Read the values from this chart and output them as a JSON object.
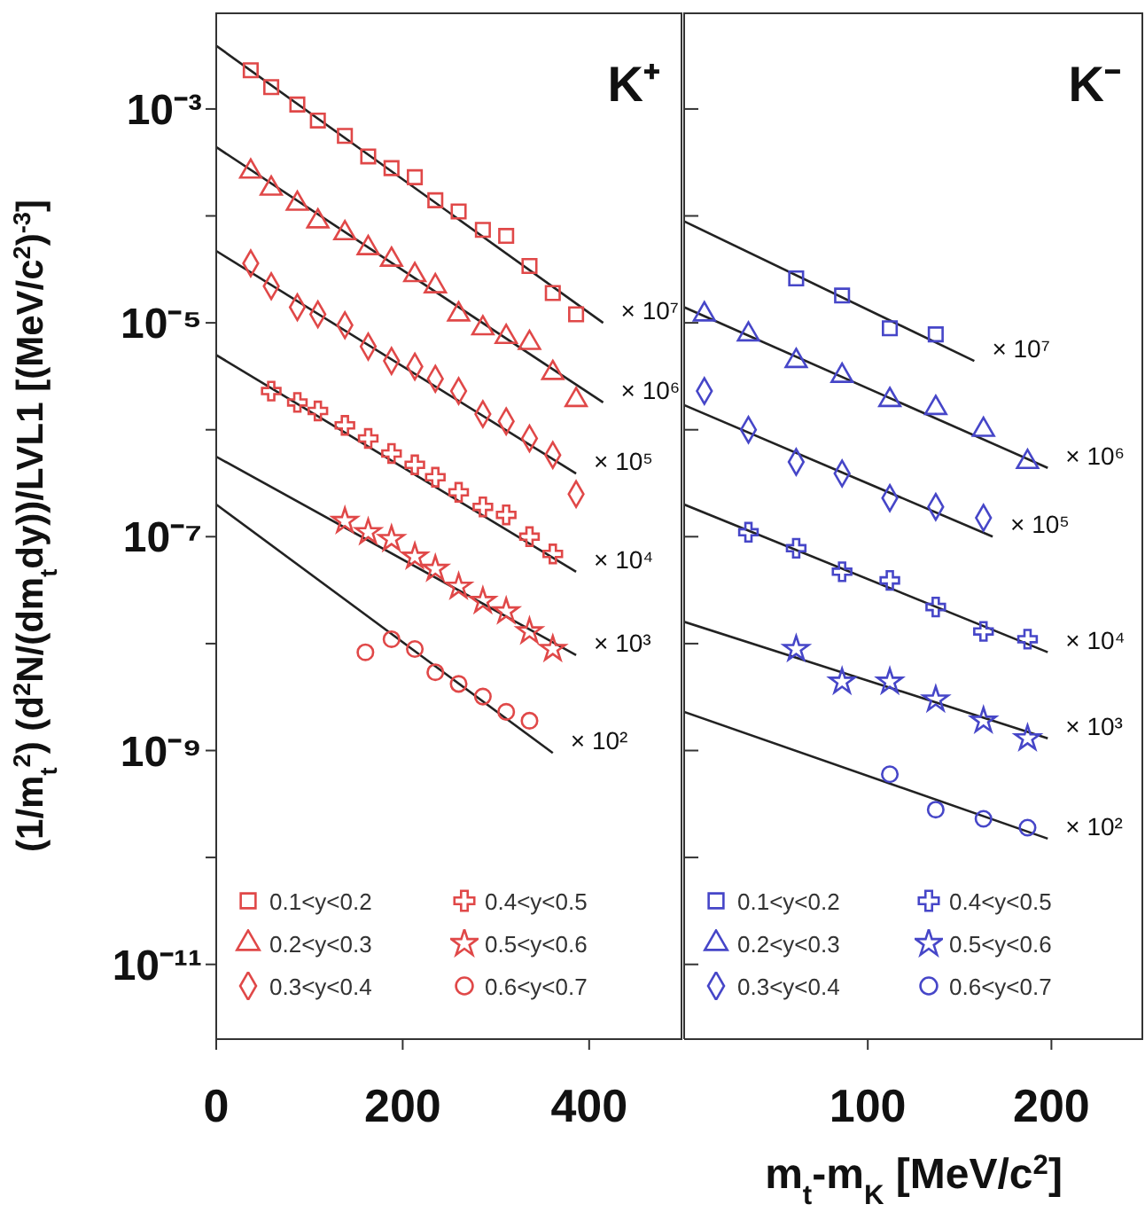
{
  "chart_data": [
    {
      "type": "scatter",
      "title": "K⁺",
      "ylabel": "(1/m$_{t}$$^{2}$) (d$^{2}$N/(dm$_{t}$dy))/LVL1 [(MeV/c$^{2}$)$^{-3}$]",
      "log": "y",
      "legend": "bottom",
      "xlim": [
        0,
        500
      ],
      "xticks": [
        0,
        200,
        400
      ],
      "ylim": [
        2e-12,
        0.008
      ],
      "yticks": [
        {
          "value": 1e-11,
          "label": "10⁻¹¹"
        },
        {
          "value": 1e-10,
          "label": null
        },
        {
          "value": 1e-09,
          "label": "10⁻⁹"
        },
        {
          "value": 1e-08,
          "label": null
        },
        {
          "value": 1e-07,
          "label": "10⁻⁷"
        },
        {
          "value": 1e-06,
          "label": null
        },
        {
          "value": 1e-05,
          "label": "10⁻⁵"
        },
        {
          "value": 0.0001,
          "label": null
        },
        {
          "value": 0.001,
          "label": "10⁻³"
        }
      ],
      "series": [
        {
          "name": "0.1<y<0.2",
          "color": "#e04848",
          "marker": "square",
          "x": [
            37,
            59,
            87,
            109,
            138,
            163,
            188,
            213,
            235,
            260,
            286,
            311,
            336,
            361,
            386
          ],
          "values": [
            0.0023,
            0.0016,
            0.0011,
            0.00078,
            0.00056,
            0.00036,
            0.00028,
            0.00023,
            0.00014,
            0.00011,
            7.4e-05,
            6.5e-05,
            3.4e-05,
            1.9e-05,
            1.2e-05
          ]
        },
        {
          "name": "0.2<y<0.3",
          "color": "#e04848",
          "marker": "triangle",
          "x": [
            37,
            59,
            87,
            109,
            138,
            163,
            188,
            213,
            235,
            260,
            286,
            311,
            336,
            361,
            386
          ],
          "values": [
            0.00026,
            0.00018,
            0.00013,
            8.9e-05,
            6.9e-05,
            5e-05,
            3.9e-05,
            2.8e-05,
            2.2e-05,
            1.2e-05,
            8.9e-06,
            7.4e-06,
            6.5e-06,
            3.4e-06,
            1.9e-06
          ]
        },
        {
          "name": "0.3<y<0.4",
          "color": "#e04848",
          "marker": "diamond",
          "x": [
            37,
            59,
            87,
            109,
            138,
            163,
            188,
            213,
            235,
            260,
            286,
            311,
            336,
            361,
            386
          ],
          "values": [
            3.6e-05,
            2.2e-05,
            1.4e-05,
            1.2e-05,
            9.5e-06,
            6e-06,
            4.4e-06,
            3.9e-06,
            3e-06,
            2.3e-06,
            1.4e-06,
            1.2e-06,
            8.3e-07,
            5.8e-07,
            2.5e-07
          ]
        },
        {
          "name": "0.4<y<0.5",
          "color": "#e04848",
          "marker": "cross",
          "x": [
            59,
            87,
            109,
            138,
            163,
            188,
            213,
            235,
            260,
            286,
            311,
            336,
            361
          ],
          "values": [
            2.3e-06,
            1.8e-06,
            1.5e-06,
            1.1e-06,
            8.3e-07,
            6e-07,
            4.7e-07,
            3.6e-07,
            2.6e-07,
            1.9e-07,
            1.6e-07,
            1e-07,
            6.9e-08
          ]
        },
        {
          "name": "0.5<y<0.6",
          "color": "#e04848",
          "marker": "star",
          "x": [
            138,
            163,
            188,
            213,
            235,
            260,
            286,
            311,
            336,
            361
          ],
          "values": [
            1.4e-07,
            1.1e-07,
            9.5e-08,
            6.5e-08,
            5e-08,
            3.4e-08,
            2.5e-08,
            2e-08,
            1.3e-08,
            8.9e-09
          ]
        },
        {
          "name": "0.6<y<0.7",
          "color": "#e04848",
          "marker": "circle",
          "x": [
            160,
            188,
            213,
            235,
            260,
            286,
            311,
            336
          ],
          "values": [
            8.3e-09,
            1.1e-08,
            8.9e-09,
            5.4e-09,
            4.2e-09,
            3.2e-09,
            2.3e-09,
            1.9e-09
          ]
        },
        {
          "type": "line",
          "color": "#222222",
          "x": [
            0,
            415
          ],
          "values": [
            0.0039,
            1e-05
          ]
        },
        {
          "type": "line",
          "color": "#222222",
          "x": [
            0,
            415
          ],
          "values": [
            0.00044,
            1.8e-06
          ]
        },
        {
          "type": "line",
          "color": "#222222",
          "x": [
            0,
            386
          ],
          "values": [
            4.7e-05,
            3.9e-07
          ]
        },
        {
          "type": "line",
          "color": "#222222",
          "x": [
            0,
            386
          ],
          "values": [
            5e-06,
            4.7e-08
          ]
        },
        {
          "type": "line",
          "color": "#222222",
          "x": [
            0,
            386
          ],
          "values": [
            5.6e-07,
            7.8e-09
          ]
        },
        {
          "type": "line",
          "color": "#222222",
          "x": [
            0,
            361
          ],
          "values": [
            2e-07,
            9.5e-10
          ]
        }
      ],
      "annotations": [
        "× 10⁷",
        "× 10⁶",
        "× 10⁵",
        "× 10⁴",
        "× 10³",
        "× 10²"
      ]
    },
    {
      "type": "scatter",
      "title": "K⁻",
      "xlabel": "m$_{t}$-m$_{K}$  [MeV/c$^{2}$]",
      "log": "y",
      "legend": "bottom",
      "tick_labels": "x",
      "xlim": [
        0,
        250
      ],
      "xticks": [
        100,
        200
      ],
      "ylim": [
        2e-12,
        0.008
      ],
      "yticks": [
        {
          "value": 1e-11,
          "label": null
        },
        {
          "value": 1e-10,
          "label": null
        },
        {
          "value": 1e-09,
          "label": null
        },
        {
          "value": 1e-08,
          "label": null
        },
        {
          "value": 1e-07,
          "label": null
        },
        {
          "value": 1e-06,
          "label": null
        },
        {
          "value": 1e-05,
          "label": null
        },
        {
          "value": 0.0001,
          "label": null
        },
        {
          "value": 0.001,
          "label": null
        }
      ],
      "series": [
        {
          "name": "0.1<y<0.2",
          "color": "#4646c8",
          "marker": "square",
          "x": [
            61,
            86,
            112,
            137
          ],
          "values": [
            2.6e-05,
            1.8e-05,
            8.9e-06,
            7.8e-06
          ]
        },
        {
          "name": "0.2<y<0.3",
          "color": "#4646c8",
          "marker": "triangle",
          "x": [
            11,
            35,
            61,
            86,
            112,
            137,
            163,
            187
          ],
          "values": [
            1.2e-05,
            7.8e-06,
            4.4e-06,
            3.2e-06,
            1.9e-06,
            1.6e-06,
            1e-06,
            5e-07
          ]
        },
        {
          "name": "0.3<y<0.4",
          "color": "#4646c8",
          "marker": "diamond",
          "x": [
            11,
            35,
            61,
            86,
            112,
            137,
            163
          ],
          "values": [
            2.3e-06,
            1e-06,
            5e-07,
            3.9e-07,
            2.3e-07,
            1.9e-07,
            1.5e-07
          ]
        },
        {
          "name": "0.4<y<0.5",
          "color": "#4646c8",
          "marker": "cross",
          "x": [
            35,
            61,
            86,
            112,
            137,
            163,
            187
          ],
          "values": [
            1.1e-07,
            7.8e-08,
            4.7e-08,
            3.9e-08,
            2.2e-08,
            1.3e-08,
            1.1e-08
          ]
        },
        {
          "name": "0.5<y<0.6",
          "color": "#4646c8",
          "marker": "star",
          "x": [
            61,
            86,
            112,
            137,
            163,
            187
          ],
          "values": [
            8.9e-09,
            4.4e-09,
            4.4e-09,
            3e-09,
            1.9e-09,
            1.3e-09
          ]
        },
        {
          "name": "0.6<y<0.7",
          "color": "#4646c8",
          "marker": "circle",
          "x": [
            112,
            137,
            163,
            187
          ],
          "values": [
            6e-10,
            2.8e-10,
            2.3e-10,
            1.9e-10
          ]
        },
        {
          "type": "line",
          "color": "#222222",
          "x": [
            0,
            158
          ],
          "values": [
            8.9e-05,
            4.4e-06
          ]
        },
        {
          "type": "line",
          "color": "#222222",
          "x": [
            0,
            198
          ],
          "values": [
            1.4e-05,
            4.4e-07
          ]
        },
        {
          "type": "line",
          "color": "#222222",
          "x": [
            0,
            168
          ],
          "values": [
            1.7e-06,
            1e-07
          ]
        },
        {
          "type": "line",
          "color": "#222222",
          "x": [
            0,
            198
          ],
          "values": [
            2e-07,
            8.3e-09
          ]
        },
        {
          "type": "line",
          "color": "#222222",
          "x": [
            0,
            198
          ],
          "values": [
            1.6e-08,
            1.3e-09
          ]
        },
        {
          "type": "line",
          "color": "#222222",
          "x": [
            0,
            198
          ],
          "values": [
            2.3e-09,
            1.5e-10
          ]
        }
      ],
      "annotations": [
        "× 10⁷",
        "× 10⁶",
        "× 10⁵",
        "× 10⁴",
        "× 10³",
        "× 10²"
      ]
    }
  ]
}
